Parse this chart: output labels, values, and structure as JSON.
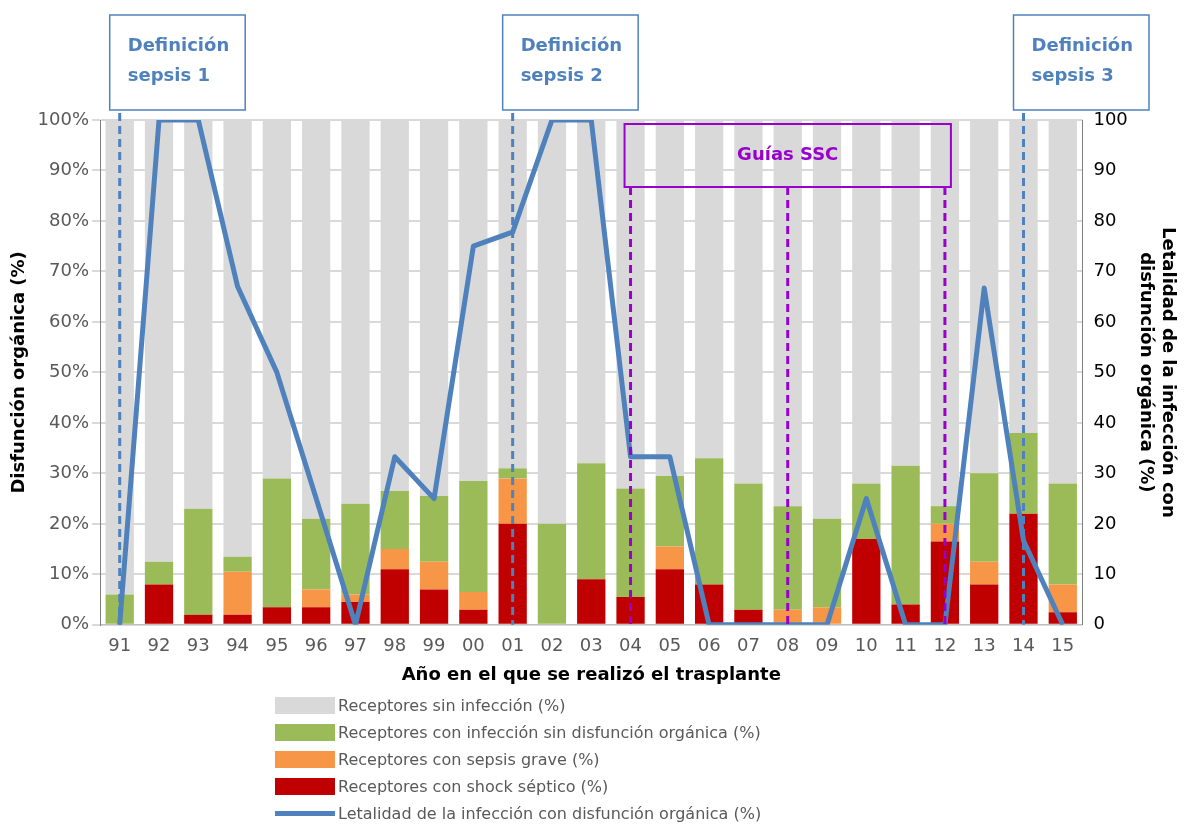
{
  "chart_data": {
    "type": "bar",
    "stacked": true,
    "categories": [
      "91",
      "92",
      "93",
      "94",
      "95",
      "96",
      "97",
      "98",
      "99",
      "00",
      "01",
      "02",
      "03",
      "04",
      "05",
      "06",
      "07",
      "08",
      "09",
      "10",
      "11",
      "12",
      "13",
      "14",
      "15"
    ],
    "series": [
      {
        "name": "Receptores con shock séptico (%)",
        "color": "#c00000",
        "values": [
          0,
          8,
          2,
          2,
          3.5,
          3.5,
          4.5,
          11,
          7,
          3,
          20,
          0,
          9,
          5.5,
          11,
          8,
          3,
          0,
          0,
          17,
          4,
          16.5,
          8,
          22,
          2.5
        ]
      },
      {
        "name": "Receptores con sepsis grave (%)",
        "color": "#f79646",
        "values": [
          0,
          0,
          0,
          8.5,
          0,
          3.5,
          1.5,
          4,
          5.5,
          3.5,
          9,
          0,
          0,
          0,
          4.5,
          0,
          0,
          3,
          3.5,
          0,
          0,
          3.5,
          4.5,
          0,
          5.5
        ]
      },
      {
        "name": "Receptores con infección sin disfunción orgánica (%)",
        "color": "#9bbb59",
        "values": [
          6,
          4.5,
          21,
          3,
          25.5,
          14,
          18,
          11.5,
          13,
          22,
          2,
          20,
          23,
          21.5,
          14,
          25,
          25,
          20.5,
          17.5,
          11,
          27.5,
          3.5,
          17.5,
          16,
          20
        ]
      },
      {
        "name": "Receptores sin infección (%)",
        "color": "#d9d9d9",
        "values": [
          94,
          87.5,
          77,
          86.5,
          71,
          79,
          76,
          73.5,
          74.5,
          71.5,
          69,
          80,
          68,
          73,
          70.5,
          67,
          72,
          76.5,
          79,
          72,
          68.5,
          76.5,
          70,
          62,
          72
        ]
      },
      {
        "name": "Letalidad de la infección con disfunción orgánica (%)",
        "type": "line",
        "axis": "y2",
        "color": "#4f81bd",
        "values": [
          0,
          100,
          100,
          67,
          50,
          25,
          0,
          33.3,
          25,
          75,
          77.8,
          100,
          100,
          33.3,
          33.3,
          0,
          0,
          0,
          0,
          25,
          0,
          0,
          66.7,
          16.7,
          0
        ]
      }
    ],
    "xlabel": "Año en el que se realizó el trasplante",
    "ylabel": "Disfunción orgánica (%)",
    "y2label": "Letalidad de la infección con disfunción orgánica (%)",
    "ylim": [
      0,
      100
    ],
    "yticks": [
      {
        "value": 0,
        "label": "0%"
      },
      {
        "value": 10,
        "label": "10%"
      },
      {
        "value": 20,
        "label": "20%"
      },
      {
        "value": 30,
        "label": "30%"
      },
      {
        "value": 40,
        "label": "40%"
      },
      {
        "value": 50,
        "label": "50%"
      },
      {
        "value": 60,
        "label": "60%"
      },
      {
        "value": 70,
        "label": "70%"
      },
      {
        "value": 80,
        "label": "80%"
      },
      {
        "value": 90,
        "label": "90%"
      },
      {
        "value": 100,
        "label": "100%"
      }
    ],
    "y2lim": [
      0,
      100
    ],
    "y2ticks": [
      0,
      10,
      20,
      30,
      40,
      50,
      60,
      70,
      80,
      90,
      100
    ],
    "grid": "y",
    "legend": "bottom",
    "line_style": "solid",
    "marker": "none",
    "ref_lines": [
      {
        "axis": "x",
        "value": "91",
        "label": "Definición sepsis 1",
        "color": "#4f81bd",
        "line_style": "dashed"
      },
      {
        "axis": "x",
        "value": "01",
        "label": "Definición sepsis 2",
        "color": "#4f81bd",
        "line_style": "dashed"
      },
      {
        "axis": "x",
        "value": "14",
        "label": "Definición sepsis 3",
        "color": "#4f81bd",
        "line_style": "dashed"
      },
      {
        "axis": "x",
        "value": "04",
        "label": null,
        "color": "#9900cc",
        "line_style": "dashed"
      },
      {
        "axis": "x",
        "value": "08",
        "label": null,
        "color": "#9900cc",
        "line_style": "dashed"
      },
      {
        "axis": "x",
        "value": "12",
        "label": null,
        "color": "#9900cc",
        "line_style": "dashed"
      }
    ],
    "annotations": [
      "Guías SSC"
    ]
  }
}
